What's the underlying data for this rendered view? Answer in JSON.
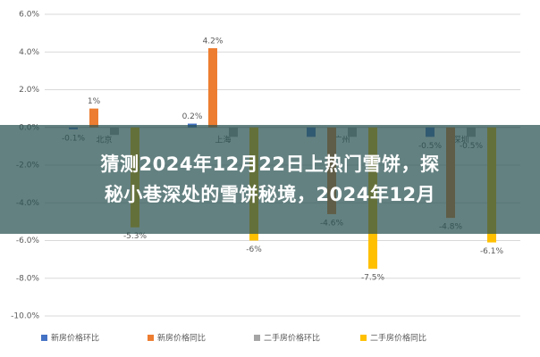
{
  "chart_data": {
    "type": "bar",
    "categories": [
      "北京",
      "上海",
      "广州",
      "深圳"
    ],
    "series": [
      {
        "name": "新房价格环比",
        "color": "#4472c4",
        "values": [
          -0.1,
          0.2,
          -0.5,
          -0.5
        ],
        "value_labels": [
          "-0.1%",
          "0.2%",
          null,
          "-0.5%"
        ]
      },
      {
        "name": "新房价格同比",
        "color": "#ed7d31",
        "values": [
          1,
          4.2,
          -4.6,
          -4.8
        ],
        "value_labels": [
          "1%",
          "4.2%",
          "-4.6%",
          "-4.8%"
        ]
      },
      {
        "name": "二手房价格环比",
        "color": "#a5a5a5",
        "values": [
          -0.4,
          -0.5,
          -0.5,
          -0.5
        ],
        "value_labels": [
          null,
          null,
          null,
          "-0.5%"
        ]
      },
      {
        "name": "二手房价格同比",
        "color": "#ffc000",
        "values": [
          -5.3,
          -6,
          -7.5,
          -6.1
        ],
        "value_labels": [
          "-5.3%",
          "-6%",
          "-7.5%",
          "-6.1%"
        ]
      }
    ],
    "ylim": [
      -10,
      6
    ],
    "yticks": [
      {
        "value": -10,
        "label": "-10.0%"
      },
      {
        "value": -8,
        "label": "-8.0%"
      },
      {
        "value": -6,
        "label": "-6.0%"
      },
      {
        "value": -4,
        "label": "-4.0%"
      },
      {
        "value": -2,
        "label": "-2.0%"
      },
      {
        "value": 0,
        "label": "0.0%"
      },
      {
        "value": 2,
        "label": "2.0%"
      },
      {
        "value": 4,
        "label": "4.0%"
      },
      {
        "value": 6,
        "label": "6.0%"
      }
    ],
    "grid": true
  },
  "banner": {
    "lines": [
      "猜测2024年12月22日上热门雪饼，探",
      "秘小巷深处的雪饼秘境，2024年12月"
    ]
  }
}
